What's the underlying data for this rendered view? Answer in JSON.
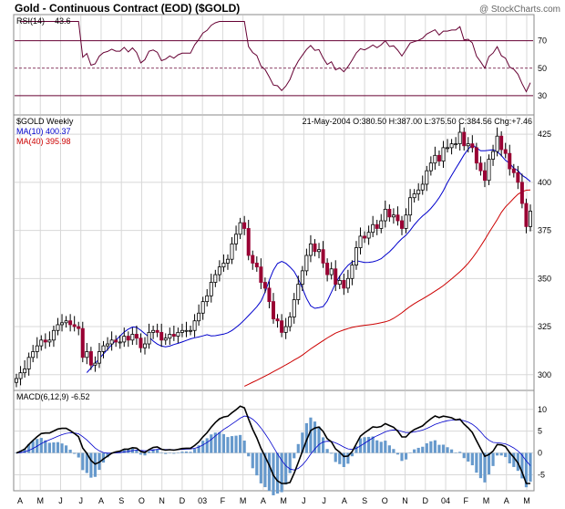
{
  "header": {
    "title": "Gold - Continuous Contract (EOD) ($GOLD)",
    "copyright": "@ StockCharts.com"
  },
  "rsi_panel": {
    "label": "RSI(14)",
    "value": "43.6",
    "levels": [
      70,
      50,
      30
    ]
  },
  "price_panel": {
    "label": "$GOLD Weekly",
    "ma10_label": "MA(10) 400.37",
    "ma40_label": "MA(40) 395.98",
    "info": "21-May-2004 O:380.50 H:387.00 L:375.50 C:384.56 Chg:+7.46",
    "y_ticks": [
      425,
      400,
      375,
      350,
      325,
      300
    ]
  },
  "macd_panel": {
    "label": "MACD(6,12,9)",
    "value": "-6.52",
    "y_ticks": [
      10,
      5,
      0,
      -5
    ]
  },
  "x_labels": [
    "A",
    "M",
    "J",
    "J",
    "A",
    "S",
    "O",
    "N",
    "D",
    "03",
    "F",
    "M",
    "A",
    "M",
    "J",
    "J",
    "A",
    "S",
    "O",
    "N",
    "D",
    "04",
    "F",
    "M",
    "A",
    "M"
  ],
  "colors": {
    "up": "#ffffff",
    "down": "#990033",
    "ma10": "#0000cc",
    "ma40": "#cc0000",
    "rsi_line": "#660033",
    "rsi_fill": "#c8a882",
    "macd_hist": "#6699cc",
    "grid": "#d8d8d8"
  },
  "chart_data": {
    "type": "candlestick",
    "interval": "weekly",
    "title": "Gold - Continuous Contract (EOD) ($GOLD)",
    "ylim": [
      295,
      432
    ],
    "close": [
      298,
      301,
      303,
      309,
      312,
      315,
      318,
      317,
      318,
      323,
      326,
      327,
      328,
      326,
      325,
      324,
      309,
      312,
      305,
      306,
      312,
      315,
      316,
      318,
      317,
      317,
      320,
      318,
      321,
      319,
      314,
      316,
      322,
      323,
      322,
      318,
      319,
      321,
      320,
      322,
      323,
      323,
      323,
      328,
      332,
      338,
      341,
      348,
      352,
      356,
      358,
      360,
      368,
      373,
      379,
      376,
      362,
      358,
      356,
      348,
      345,
      338,
      329,
      328,
      322,
      325,
      330,
      339,
      347,
      354,
      362,
      368,
      364,
      365,
      358,
      352,
      355,
      347,
      349,
      345,
      350,
      357,
      366,
      372,
      371,
      374,
      378,
      376,
      380,
      386,
      382,
      383,
      380,
      376,
      383,
      392,
      394,
      396,
      399,
      406,
      410,
      414,
      411,
      418,
      418,
      420,
      420,
      426,
      419,
      420,
      418,
      410,
      406,
      401,
      412,
      416,
      424,
      417,
      415,
      407,
      405,
      400,
      389,
      377,
      385
    ],
    "ma10": [
      301.1,
      303.5,
      305.9,
      308.4,
      310.8,
      313.2,
      315.6,
      317.9,
      320.1,
      322.2,
      323.7,
      324.8,
      324.6,
      323.1,
      321.3,
      319.6,
      317.5,
      315.9,
      314.9,
      314.5,
      314.9,
      315.7,
      316.3,
      317.0,
      317.8,
      318.6,
      319.2,
      319.6,
      320.2,
      320.8,
      320.2,
      320.3,
      320.7,
      321.1,
      321.8,
      323.0,
      324.6,
      326.4,
      328.5,
      330.7,
      333.0,
      335.3,
      338.2,
      342.9,
      349.1,
      354.3,
      357.8,
      358.9,
      357.9,
      356.0,
      353.7,
      349.8,
      345.0,
      339.6,
      335.8,
      334.5,
      334.9,
      335.4,
      338.3,
      342.9,
      347.5,
      351.2,
      354.3,
      356.9,
      358.6,
      359.3,
      358.8,
      358.3,
      358.4,
      358.7,
      359.3,
      360.3,
      362.1,
      363.9,
      366.1,
      368.6,
      370.7,
      372.5,
      375.0,
      377.9,
      380.4,
      382.5,
      384.3,
      386.4,
      389.0,
      392.0,
      395.6,
      399.9,
      403.6,
      407.2,
      410.7,
      414.3,
      417.2,
      419.6,
      417.9,
      416.4,
      416.4,
      416.6,
      416.9,
      415.9,
      413.9,
      411.4,
      409.9,
      407.3,
      406.1,
      403.6,
      402.2,
      400.4
    ],
    "ma40": [
      294.0,
      295.0,
      296.1,
      297.1,
      298.2,
      299.3,
      300.4,
      301.6,
      302.7,
      303.9,
      305.1,
      306.3,
      307.6,
      308.8,
      310.2,
      311.8,
      313.4,
      314.9,
      316.3,
      317.7,
      319.1,
      320.4,
      321.6,
      322.5,
      323.3,
      324.0,
      324.6,
      325.0,
      325.4,
      325.7,
      325.9,
      326.2,
      326.6,
      327.0,
      327.5,
      328.2,
      329.3,
      330.7,
      332.2,
      333.9,
      335.5,
      336.9,
      338.2,
      339.4,
      340.7,
      342.0,
      343.4,
      344.8,
      346.3,
      348.0,
      349.8,
      351.6,
      353.5,
      355.6,
      357.9,
      360.6,
      363.6,
      366.8,
      370.2,
      373.8,
      377.2,
      380.6,
      384.4,
      387.2,
      389.4,
      391.7,
      393.8,
      395.1,
      395.9,
      396.0
    ]
  }
}
